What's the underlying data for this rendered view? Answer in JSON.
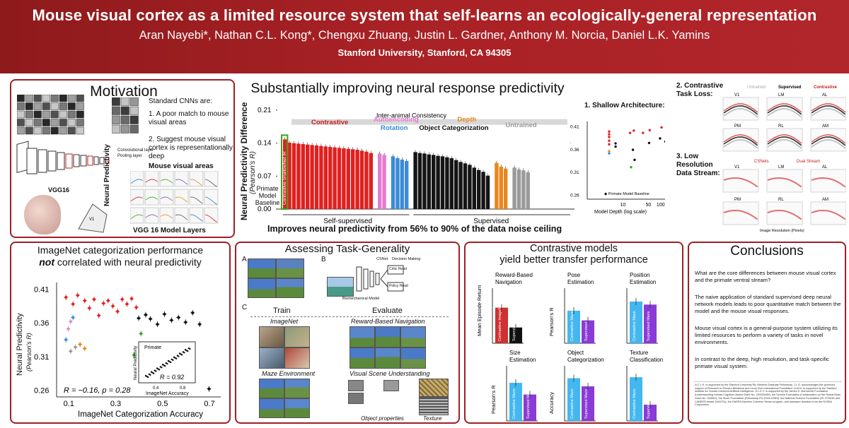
{
  "header": {
    "title": "Mouse visual cortex as a limited resource system that self-learns an ecologically-general representation",
    "authors": "Aran Nayebi*, Nathan C.L. Kong*, Chengxu Zhuang, Justin L. Gardner, Anthony M. Norcia, Daniel L.K. Yamins",
    "affiliation": "Stanford University, Stanford, CA 94305"
  },
  "motivation": {
    "title": "Motivation",
    "intro": "Standard CNNs are:",
    "point1": "1. A poor match to mouse visual areas",
    "point2": "2. Suggest mouse visual cortex is representationally deep",
    "vgg_label": "VGG16",
    "mouse_areas_label": "Mouse visual areas",
    "y_label": "Neural Predictivity",
    "x_label": "VGG 16 Model Layers",
    "conv_legend": "Convolutional layer",
    "pool_legend": "Pooling layer",
    "area_labels": [
      "V1",
      "LM",
      "AL",
      "PM",
      "RL",
      "AM"
    ]
  },
  "predictivity": {
    "title": "Substantially improving neural response predictivity",
    "y_label": "Neural Predictivity Difference",
    "y_sub": "(Pearson's R)",
    "baseline_label": "Primate Model Baseline",
    "inter_animal": "Inter-animal Consistency",
    "group_labels": {
      "contrastive": "Contrastive",
      "autoencoding": "Autoencoding",
      "rotation": "Rotation",
      "depth": "Depth",
      "object": "Object Categorization",
      "untrained": "Untrained"
    },
    "highlight_label": "Contrastive ShallowNet IR",
    "x_groups": [
      "Self-supervised",
      "Supervised"
    ],
    "footer": "Improves neural predictivity from 56% to 90% of the data noise ceiling",
    "shallow_label": "1. Shallow Architecture:",
    "shallow_italic": "Shallow",
    "depth_axis": "Model Depth (log scale)",
    "depth_ylabel": "Neural Predictivity",
    "depth_ysub": "(Pearson's R)",
    "primate_baseline": "Primate Model Baseline",
    "contrastive_loss": "2. Contrastive Task Loss:",
    "low_res": "3. Low Resolution Data Stream:",
    "legend_untrained": "Untrained",
    "legend_supervised": "Supervised",
    "legend_contrastive": "Contrastive",
    "cs_nets": "CSNets",
    "dual_stream": "Dual Stream",
    "panel_areas": [
      "V1",
      "LM",
      "AL",
      "PM",
      "RL",
      "AM"
    ],
    "res_axis": "Image Resolution (Pixels)"
  },
  "chart_data": [
    {
      "type": "bar",
      "title": "Substantially improving neural response predictivity",
      "ylabel": "Neural Predictivity Difference (Pearson's R)",
      "ylim": [
        0,
        0.21
      ],
      "yticks": [
        0.0,
        0.07,
        0.14,
        0.21
      ],
      "inter_animal_consistency": 0.185,
      "series": [
        {
          "name": "Contrastive",
          "values": [
            0.148,
            0.141,
            0.14,
            0.139,
            0.138,
            0.137,
            0.136,
            0.135,
            0.134,
            0.133,
            0.132,
            0.131,
            0.13,
            0.129,
            0.128,
            0.127,
            0.126,
            0.124,
            0.122,
            0.119
          ]
        },
        {
          "name": "Autoencoding",
          "values": [
            0.118,
            0.115
          ]
        },
        {
          "name": "Rotation",
          "values": [
            0.112,
            0.108,
            0.105,
            0.102
          ]
        },
        {
          "name": "Object Categorization",
          "values": [
            0.121,
            0.119,
            0.118,
            0.116,
            0.115,
            0.113,
            0.112,
            0.11,
            0.108,
            0.104,
            0.1,
            0.097,
            0.094,
            0.088,
            0.083,
            0.079,
            0.071
          ]
        },
        {
          "name": "Depth",
          "values": [
            0.098,
            0.09,
            0.086
          ]
        },
        {
          "name": "Untrained",
          "values": [
            0.088,
            0.084,
            0.082,
            0.078
          ]
        }
      ]
    },
    {
      "type": "scatter",
      "title": "ImageNet categorization performance not correlated with neural predictivity",
      "xlabel": "ImageNet Categorization Accuracy",
      "ylabel": "Neural Predictivity (Pearson's R)",
      "xlim": [
        0.05,
        0.75
      ],
      "ylim": [
        0.25,
        0.42
      ],
      "xticks": [
        0.1,
        0.3,
        0.5,
        0.7
      ],
      "yticks": [
        0.26,
        0.31,
        0.36,
        0.41
      ],
      "annotation": "R = −0.16, p = 0.28",
      "points": [
        {
          "x": 0.09,
          "y": 0.398,
          "c": "red"
        },
        {
          "x": 0.12,
          "y": 0.388,
          "c": "red"
        },
        {
          "x": 0.14,
          "y": 0.401,
          "c": "red"
        },
        {
          "x": 0.17,
          "y": 0.393,
          "c": "red"
        },
        {
          "x": 0.19,
          "y": 0.382,
          "c": "red"
        },
        {
          "x": 0.21,
          "y": 0.395,
          "c": "red"
        },
        {
          "x": 0.23,
          "y": 0.371,
          "c": "red"
        },
        {
          "x": 0.25,
          "y": 0.389,
          "c": "red"
        },
        {
          "x": 0.27,
          "y": 0.393,
          "c": "red"
        },
        {
          "x": 0.29,
          "y": 0.385,
          "c": "red"
        },
        {
          "x": 0.31,
          "y": 0.377,
          "c": "red"
        },
        {
          "x": 0.33,
          "y": 0.395,
          "c": "red"
        },
        {
          "x": 0.35,
          "y": 0.388,
          "c": "red"
        },
        {
          "x": 0.37,
          "y": 0.396,
          "c": "red"
        },
        {
          "x": 0.39,
          "y": 0.383,
          "c": "red"
        },
        {
          "x": 0.4,
          "y": 0.367,
          "c": "black"
        },
        {
          "x": 0.43,
          "y": 0.372,
          "c": "black"
        },
        {
          "x": 0.45,
          "y": 0.366,
          "c": "black"
        },
        {
          "x": 0.48,
          "y": 0.358,
          "c": "black"
        },
        {
          "x": 0.51,
          "y": 0.373,
          "c": "black"
        },
        {
          "x": 0.54,
          "y": 0.364,
          "c": "black"
        },
        {
          "x": 0.57,
          "y": 0.368,
          "c": "black"
        },
        {
          "x": 0.6,
          "y": 0.361,
          "c": "black"
        },
        {
          "x": 0.63,
          "y": 0.375,
          "c": "black"
        },
        {
          "x": 0.66,
          "y": 0.358,
          "c": "black"
        },
        {
          "x": 0.7,
          "y": 0.262,
          "c": "black"
        },
        {
          "x": 0.11,
          "y": 0.362,
          "c": "violet"
        },
        {
          "x": 0.1,
          "y": 0.351,
          "c": "violet"
        },
        {
          "x": 0.12,
          "y": 0.368,
          "c": "blue"
        },
        {
          "x": 0.09,
          "y": 0.335,
          "c": "blue"
        },
        {
          "x": 0.15,
          "y": 0.328,
          "c": "orange"
        },
        {
          "x": 0.17,
          "y": 0.322,
          "c": "orange"
        },
        {
          "x": 0.11,
          "y": 0.318,
          "c": "gray"
        },
        {
          "x": 0.13,
          "y": 0.324,
          "c": "gray"
        },
        {
          "x": 0.38,
          "y": 0.312,
          "c": "green"
        },
        {
          "x": 0.41,
          "y": 0.344,
          "c": "green"
        }
      ]
    },
    {
      "type": "bar",
      "title": "Reward-Based Navigation",
      "ylabel": "Mean Episode Return",
      "categories": [
        "Contrastive ImageNet",
        "Supervised ImageNet"
      ],
      "values": [
        0.7,
        0.31
      ]
    },
    {
      "type": "bar",
      "title": "Pose Estimation",
      "ylabel": "Pearson's R",
      "categories": [
        "Contrastive Maze",
        "Supervised Maze"
      ],
      "values": [
        0.64,
        0.45
      ]
    },
    {
      "type": "bar",
      "title": "Position Estimation",
      "ylabel": "Pearson's R",
      "categories": [
        "Contrastive Maze",
        "Supervised Maze"
      ],
      "values": [
        0.82,
        0.76
      ]
    },
    {
      "type": "bar",
      "title": "Size Estimation",
      "ylabel": "Pearson's R",
      "categories": [
        "Contrastive Maze",
        "Supervised Maze"
      ],
      "values": [
        0.75,
        0.52
      ]
    },
    {
      "type": "bar",
      "title": "Object Categorization",
      "ylabel": "Accuracy",
      "categories": [
        "Contrastive Maze",
        "Supervised Maze"
      ],
      "values": [
        0.84,
        0.68
      ]
    },
    {
      "type": "bar",
      "title": "Texture Classification",
      "ylabel": "",
      "categories": [
        "Contrastive Maze",
        "Supervised Maze"
      ],
      "values": [
        0.86,
        0.32
      ]
    }
  ],
  "imagenet": {
    "title1": "ImageNet categorization performance",
    "title2_bold": "not",
    "title2_rest": "correlated with neural predictivity",
    "y_label": "Neural Predictivity",
    "y_sub": "(Pearson's R)",
    "x_label": "ImageNet Categorization Accuracy",
    "annotation": "R = −0.16, p = 0.28",
    "inset_title": "Primate",
    "inset_r": "R = 0.92",
    "inset_x": "ImageNet Accuracy",
    "inset_y": "Neural Predictivity",
    "inset_ticks": [
      "0.4",
      "0.8"
    ]
  },
  "generality": {
    "title": "Assessing Task-Generality",
    "label_a": "A",
    "label_b": "B",
    "label_c": "C",
    "train": "Train",
    "evaluate": "Evaluate",
    "imagenet": "ImageNet",
    "maze": "Maze Environment",
    "reward_nav": "Reward-Based Navigation",
    "visual_scene": "Visual Scene Understanding",
    "object_props": "Object properties",
    "texture": "Texture",
    "cs_net": "CSNet",
    "decision": "Decision Making",
    "critic_head": "Critic Head",
    "policy_head": "Policy Head",
    "biomech": "Biomechanical Model"
  },
  "transfer": {
    "title1": "Contrastive models",
    "title2": "yield better transfer performance",
    "mean_return": "Mean Episode Return",
    "pearson": "Pearson's R",
    "accuracy": "Accuracy",
    "labels": {
      "reward": "Reward-Based Navigation",
      "pose": "Pose Estimation",
      "position": "Position Estimation",
      "size": "Size Estimation",
      "object": "Object Categorization",
      "texture": "Texture Classification"
    }
  },
  "conclusions": {
    "title": "Conclusions",
    "question": "What are the core differences between mouse visual cortex and the primate ventral stream?",
    "c1": "The naive application of standard supervised deep neural network models leads to poor quantitative match between the model and the mouse visual responses.",
    "c2": "Mouse visual cortex is a general-purpose system utilizing its limited resources to perform a variety of tasks in novel environments.",
    "c3": "In contrast to the deep, high resolution, and task-specific primate visual system.",
    "ack": "N.C.L.K. is supported by the Stanford University Ric Weiland Graduate Fellowship. J.L.G. acknowledges the generous support of Research to Prevent Blindness and Lions Club International Foundation. A.M.N. is supported by the Stanford Institute for Human-Centered Artificial Intelligence. D.L.K.Y. is supported by the James S. McDonnell Foundation (Understanding Human Cognition Award Grant No. 220020469), the Simons Foundation (Collaboration on the Global Brain Grant No. 543061), the Sloan Foundation (Fellowship FG-2018-10963), the National Science Foundation (RI 1703161 and CAREER Award 1844724), the DARPA Machine Common Sense program, and hardware donation from the NVIDIA Corporation."
  }
}
